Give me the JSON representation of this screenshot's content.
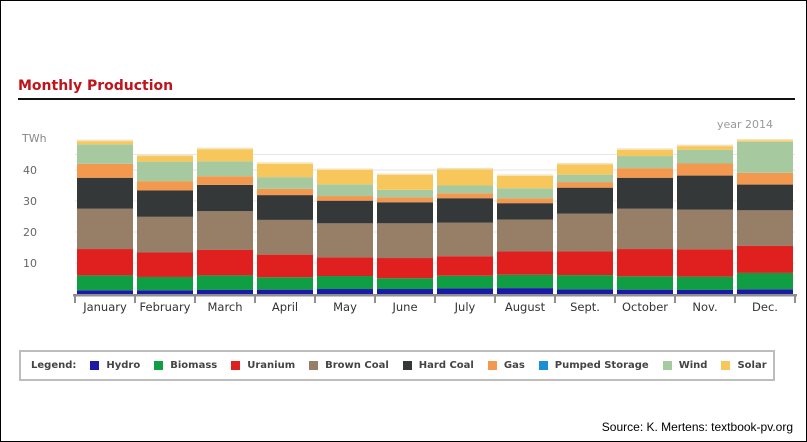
{
  "chart_data": {
    "type": "bar",
    "stacked": true,
    "title": "Monthly Production",
    "subtitle": "year 2014",
    "ylabel": "TWh",
    "xlabel": "",
    "ylim": [
      0,
      50
    ],
    "yticks": [
      10,
      20,
      30,
      40
    ],
    "grid": true,
    "legend_position": "bottom",
    "legend_title": "Legend:",
    "categories": [
      "January",
      "February",
      "March",
      "April",
      "May",
      "June",
      "July",
      "August",
      "Sept.",
      "October",
      "Nov.",
      "Dec."
    ],
    "series": [
      {
        "name": "Hydro",
        "color": "#1a1aa6",
        "values": [
          1.2,
          1.2,
          1.3,
          1.4,
          1.6,
          1.6,
          1.8,
          1.9,
          1.5,
          1.4,
          1.3,
          1.5
        ]
      },
      {
        "name": "Biomass",
        "color": "#0f9e43",
        "values": [
          4.8,
          4.3,
          4.7,
          4.0,
          4.2,
          3.5,
          4.1,
          4.3,
          4.6,
          4.3,
          4.3,
          5.3
        ]
      },
      {
        "name": "Uranium",
        "color": "#e01f1f",
        "values": [
          8.5,
          7.9,
          8.2,
          7.3,
          6.0,
          6.5,
          6.3,
          7.5,
          7.6,
          8.8,
          8.8,
          8.7
        ]
      },
      {
        "name": "Brown Coal",
        "color": "#977e67",
        "values": [
          13.0,
          11.5,
          12.5,
          11.2,
          11.0,
          11.2,
          10.8,
          10.3,
          12.2,
          13.0,
          12.8,
          11.5
        ]
      },
      {
        "name": "Hard Coal",
        "color": "#343838",
        "values": [
          10.0,
          8.5,
          8.5,
          8.0,
          7.3,
          6.8,
          7.9,
          5.3,
          8.4,
          10.0,
          11.0,
          8.3
        ]
      },
      {
        "name": "Gas",
        "color": "#f2984f",
        "values": [
          4.5,
          3.0,
          2.8,
          2.0,
          1.5,
          1.6,
          1.6,
          1.6,
          1.8,
          3.1,
          3.9,
          3.8
        ]
      },
      {
        "name": "Pumped Storage",
        "color": "#1a8fd8",
        "values": [
          0.0,
          0.0,
          0.0,
          0.0,
          0.0,
          0.0,
          0.0,
          0.0,
          0.0,
          0.0,
          0.0,
          0.0
        ]
      },
      {
        "name": "Wind",
        "color": "#a6c9a0",
        "values": [
          6.3,
          6.3,
          4.8,
          3.8,
          3.8,
          2.4,
          2.5,
          3.2,
          2.4,
          3.9,
          4.4,
          10.0
        ]
      },
      {
        "name": "Solar",
        "color": "#f7c75c",
        "values": [
          1.0,
          1.8,
          3.9,
          4.3,
          4.6,
          4.8,
          5.2,
          4.0,
          3.3,
          2.0,
          1.2,
          0.4
        ]
      }
    ]
  },
  "source": "Source: K. Mertens: textbook-pv.org"
}
